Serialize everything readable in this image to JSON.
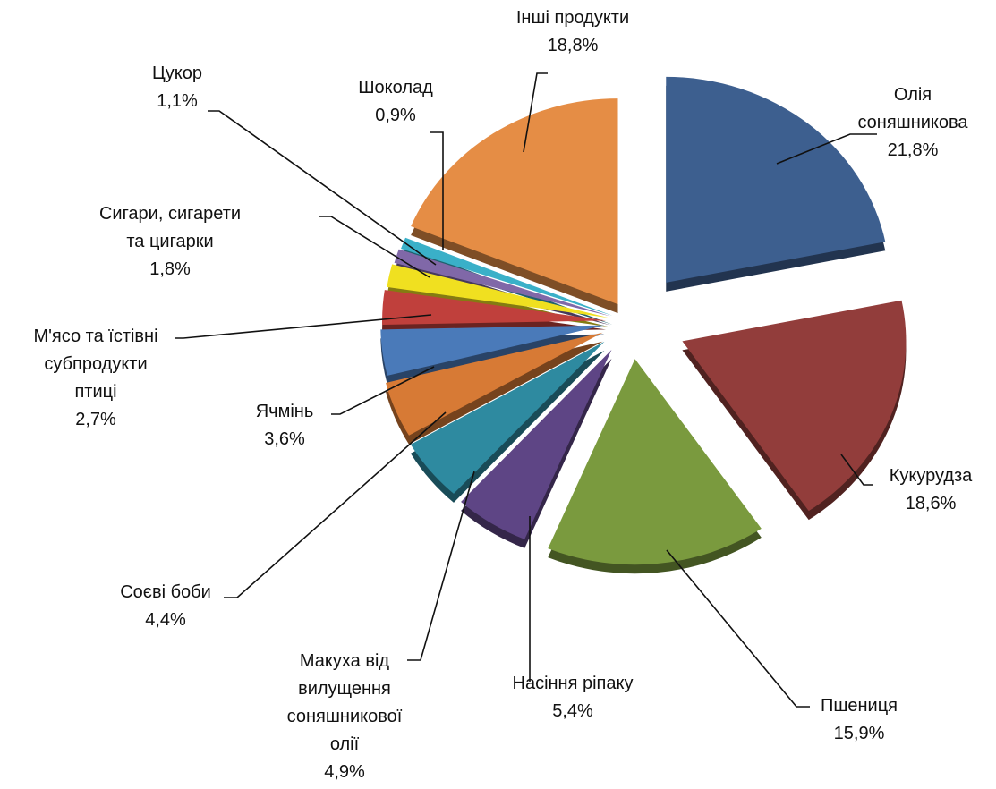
{
  "chart_data": {
    "type": "pie",
    "style": "3d-exploded",
    "slices": [
      {
        "label": "Олія соняшникова",
        "lines": [
          "Олія",
          "соняшникова"
        ],
        "pct": "21,8%",
        "value": 21.8,
        "color": "#3d5f8f"
      },
      {
        "label": "Кукурудза",
        "lines": [
          "Кукурудза"
        ],
        "pct": "18,6%",
        "value": 18.6,
        "color": "#923d3b"
      },
      {
        "label": "Пшениця",
        "lines": [
          "Пшениця"
        ],
        "pct": "15,9%",
        "value": 15.9,
        "color": "#7a9a3e"
      },
      {
        "label": "Насіння ріпаку",
        "lines": [
          "Насіння ріпаку"
        ],
        "pct": "5,4%",
        "value": 5.4,
        "color": "#5e4585"
      },
      {
        "label": "Макуха від вилущення соняшникової олії",
        "lines": [
          "Макуха від",
          "вилущення",
          "соняшникової",
          "олії"
        ],
        "pct": "4,9%",
        "value": 4.9,
        "color": "#2e8aa0"
      },
      {
        "label": "Соєві боби",
        "lines": [
          "Соєві боби"
        ],
        "pct": "4,4%",
        "value": 4.4,
        "color": "#d77a35"
      },
      {
        "label": "Ячмінь",
        "lines": [
          "Ячмінь"
        ],
        "pct": "3,6%",
        "value": 3.6,
        "color": "#4a7ab9"
      },
      {
        "label": "М'ясо та їстівні субпродукти птиці",
        "lines": [
          "М'ясо та їстівні",
          "субпродукти",
          "птиці"
        ],
        "pct": "2,7%",
        "value": 2.7,
        "color": "#c0403c"
      },
      {
        "label": "Сигари, сигарети та цигарки",
        "lines": [
          "Сигари, сигарети",
          "та цигарки"
        ],
        "pct": "1,8%",
        "value": 1.8,
        "color": "#f0e020"
      },
      {
        "label": "Цукор",
        "lines": [
          "Цукор"
        ],
        "pct": "1,1%",
        "value": 1.1,
        "color": "#8068a8"
      },
      {
        "label": "Шоколад",
        "lines": [
          "Шоколад"
        ],
        "pct": "0,9%",
        "value": 0.9,
        "color": "#3ab0c8"
      },
      {
        "label": "Інші продукти",
        "lines": [
          "Інші продукти"
        ],
        "pct": "18,8%",
        "value": 18.8,
        "color": "#e58d45"
      }
    ]
  }
}
